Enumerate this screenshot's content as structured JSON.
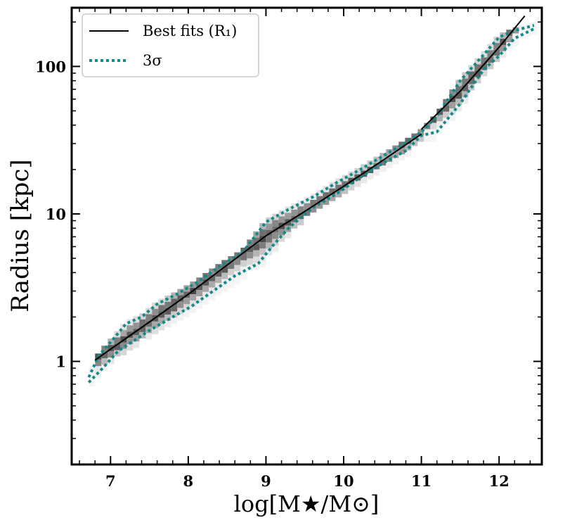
{
  "chart_data": {
    "type": "line",
    "xlabel": "log[M★/M⊙]",
    "ylabel": "Radius [kpc]",
    "xlim": [
      6.5,
      12.55
    ],
    "ylim": [
      0.2,
      250
    ],
    "yscale": "log",
    "x_ticks": [
      7,
      8,
      9,
      10,
      11,
      12
    ],
    "x_tick_labels": [
      "7",
      "8",
      "9",
      "10",
      "11",
      "12"
    ],
    "y_ticks": [
      1,
      10,
      100
    ],
    "y_tick_labels": [
      "1",
      "10",
      "100"
    ],
    "legend": {
      "position": "top-left",
      "entries": [
        {
          "label": "Best fits (R₁)",
          "style": "solid",
          "color": "#000000"
        },
        {
          "label": "3σ",
          "style": "dotted",
          "color": "#138a8a"
        }
      ]
    },
    "series": [
      {
        "name": "Best fits (R₁) low-mass",
        "x": [
          6.8,
          7.5,
          8.0,
          8.5,
          9.0,
          9.5,
          10.0,
          10.5,
          11.0
        ],
        "y": [
          1.02,
          1.85,
          2.85,
          4.5,
          7.1,
          10.4,
          15.4,
          23.0,
          34.8
        ]
      },
      {
        "name": "Best fits (R₁) high-mass",
        "x": [
          11.0,
          11.5,
          12.0,
          12.33
        ],
        "y": [
          37.5,
          68.0,
          135.0,
          220.0
        ]
      },
      {
        "name": "3σ upper contour",
        "x": [
          6.72,
          6.85,
          7.0,
          7.2,
          7.4,
          7.6,
          7.85,
          8.1,
          8.4,
          8.7,
          9.0,
          9.3,
          9.6,
          9.9,
          10.2,
          10.5,
          10.8,
          11.0,
          11.2,
          11.5,
          11.8,
          12.0,
          12.2,
          12.45
        ],
        "y": [
          0.78,
          1.1,
          1.35,
          1.8,
          2.0,
          2.45,
          2.85,
          3.4,
          4.4,
          5.5,
          8.8,
          10.8,
          13.0,
          16.2,
          19.8,
          24.6,
          30.5,
          36.0,
          46.0,
          80.0,
          120.0,
          158.0,
          175.0,
          190.0
        ]
      },
      {
        "name": "3σ lower contour",
        "x": [
          6.72,
          6.9,
          7.1,
          7.3,
          7.5,
          7.8,
          8.05,
          8.3,
          8.6,
          8.9,
          9.1,
          9.3,
          9.6,
          9.9,
          10.2,
          10.5,
          10.8,
          11.0,
          11.2,
          11.5,
          11.8,
          12.0,
          12.2,
          12.45
        ],
        "y": [
          0.72,
          0.9,
          1.18,
          1.38,
          1.62,
          2.0,
          2.38,
          2.95,
          3.8,
          4.6,
          6.2,
          8.1,
          11.0,
          13.6,
          17.5,
          22.0,
          26.8,
          34.0,
          36.0,
          56.0,
          95.0,
          118.0,
          155.0,
          180.0
        ]
      }
    ]
  }
}
